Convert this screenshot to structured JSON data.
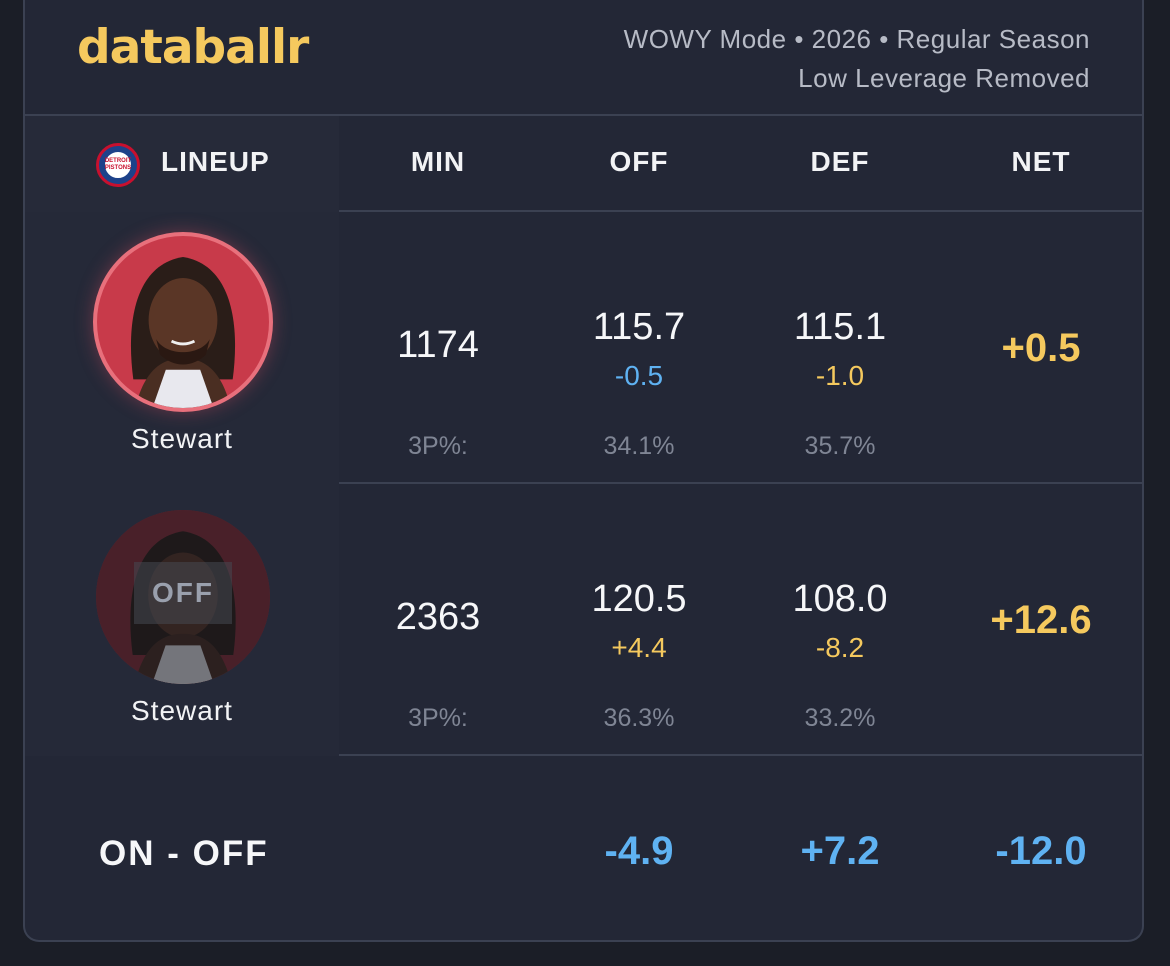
{
  "brand": {
    "logo": "databallr",
    "accent": "#f5c95e"
  },
  "header": {
    "subtitle_line1": "WOWY Mode • 2026 • Regular Season",
    "subtitle_line2": "Low Leverage Removed"
  },
  "columns": {
    "lineup": "LINEUP",
    "min": "MIN",
    "off": "OFF",
    "def": "DEF",
    "net": "NET"
  },
  "team": {
    "logo_text": "DETROIT PISTONS",
    "icon": "pistons-logo-icon"
  },
  "rows": [
    {
      "player": "Stewart",
      "state": "on",
      "min": "1174",
      "off": "115.7",
      "off_delta": "-0.5",
      "def": "115.1",
      "def_delta": "-1.0",
      "net": "+0.5",
      "pct_label": "3P%:",
      "off_pct": "34.1%",
      "def_pct": "35.7%"
    },
    {
      "player": "Stewart",
      "state": "off",
      "off_badge": "OFF",
      "min": "2363",
      "off": "120.5",
      "off_delta": "+4.4",
      "def": "108.0",
      "def_delta": "-8.2",
      "net": "+12.6",
      "pct_label": "3P%:",
      "off_pct": "36.3%",
      "def_pct": "33.2%"
    }
  ],
  "summary": {
    "label": "ON - OFF",
    "off": "-4.9",
    "def": "+7.2",
    "net": "-12.0"
  },
  "colors": {
    "positive_yellow": "#f5c95e",
    "blue": "#5fb2f2",
    "background": "#232736"
  }
}
